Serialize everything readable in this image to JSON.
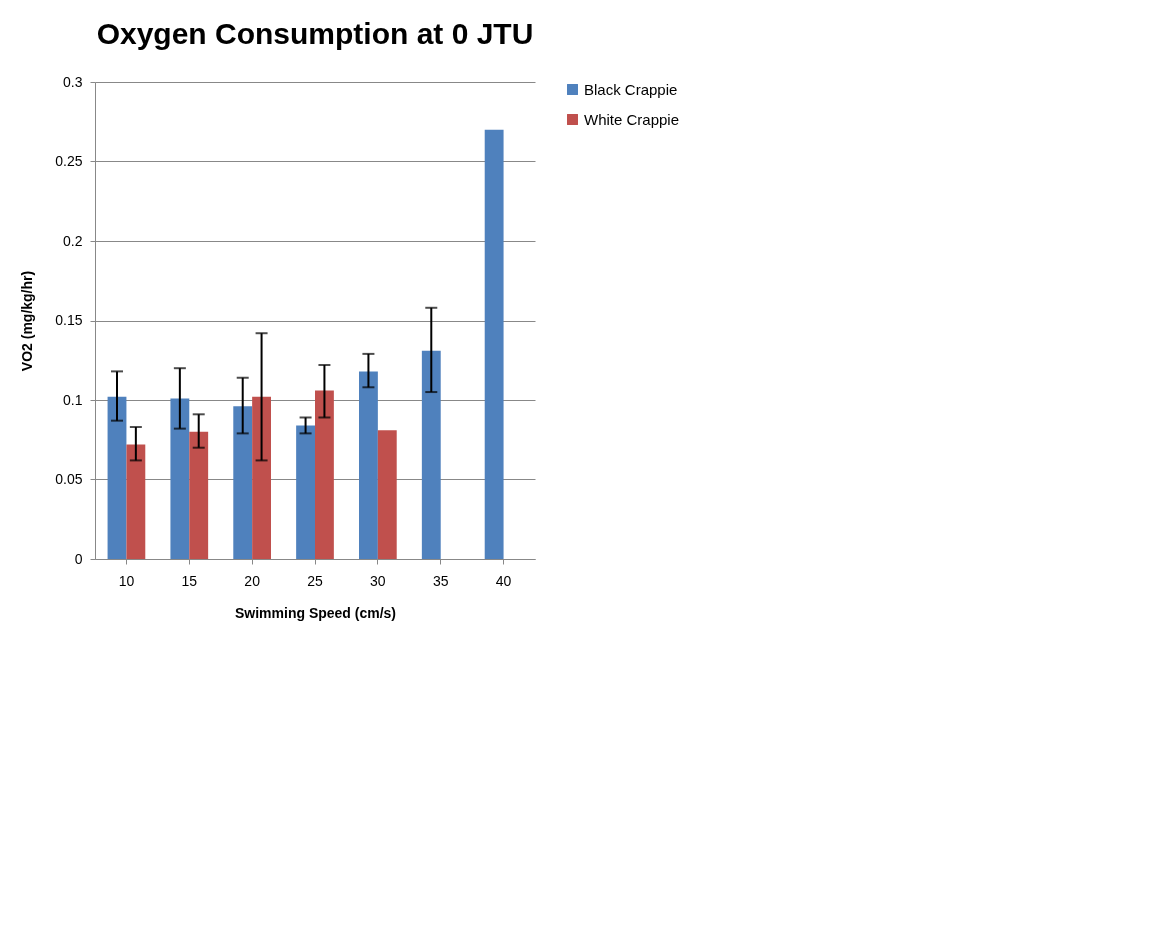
{
  "chart_data": {
    "type": "bar",
    "title": "Oxygen Consumption at 0 JTU",
    "xlabel": "Swimming Speed (cm/s)",
    "ylabel": "VO2 (mg/kg/hr)",
    "categories": [
      "10",
      "15",
      "20",
      "25",
      "30",
      "35",
      "40"
    ],
    "series": [
      {
        "name": "Black Crappie",
        "color": "#4f81bd",
        "values": [
          0.102,
          0.101,
          0.096,
          0.084,
          0.118,
          0.131,
          0.27
        ],
        "errors": [
          [
            0.087,
            0.118
          ],
          [
            0.082,
            0.12
          ],
          [
            0.079,
            0.114
          ],
          [
            0.079,
            0.089
          ],
          [
            0.108,
            0.129
          ],
          [
            0.105,
            0.158
          ],
          null
        ]
      },
      {
        "name": "White Crappie",
        "color": "#c0504d",
        "values": [
          0.072,
          0.08,
          0.102,
          0.106,
          0.081,
          null,
          null
        ],
        "errors": [
          [
            0.062,
            0.083
          ],
          [
            0.07,
            0.091
          ],
          [
            0.062,
            0.142
          ],
          [
            0.089,
            0.122
          ],
          null,
          null,
          null
        ]
      }
    ],
    "ylim": [
      0,
      0.3
    ],
    "yticks": [
      0,
      0.05,
      0.1,
      0.15,
      0.2,
      0.25,
      0.3
    ],
    "grid": "y",
    "legend": "right"
  }
}
